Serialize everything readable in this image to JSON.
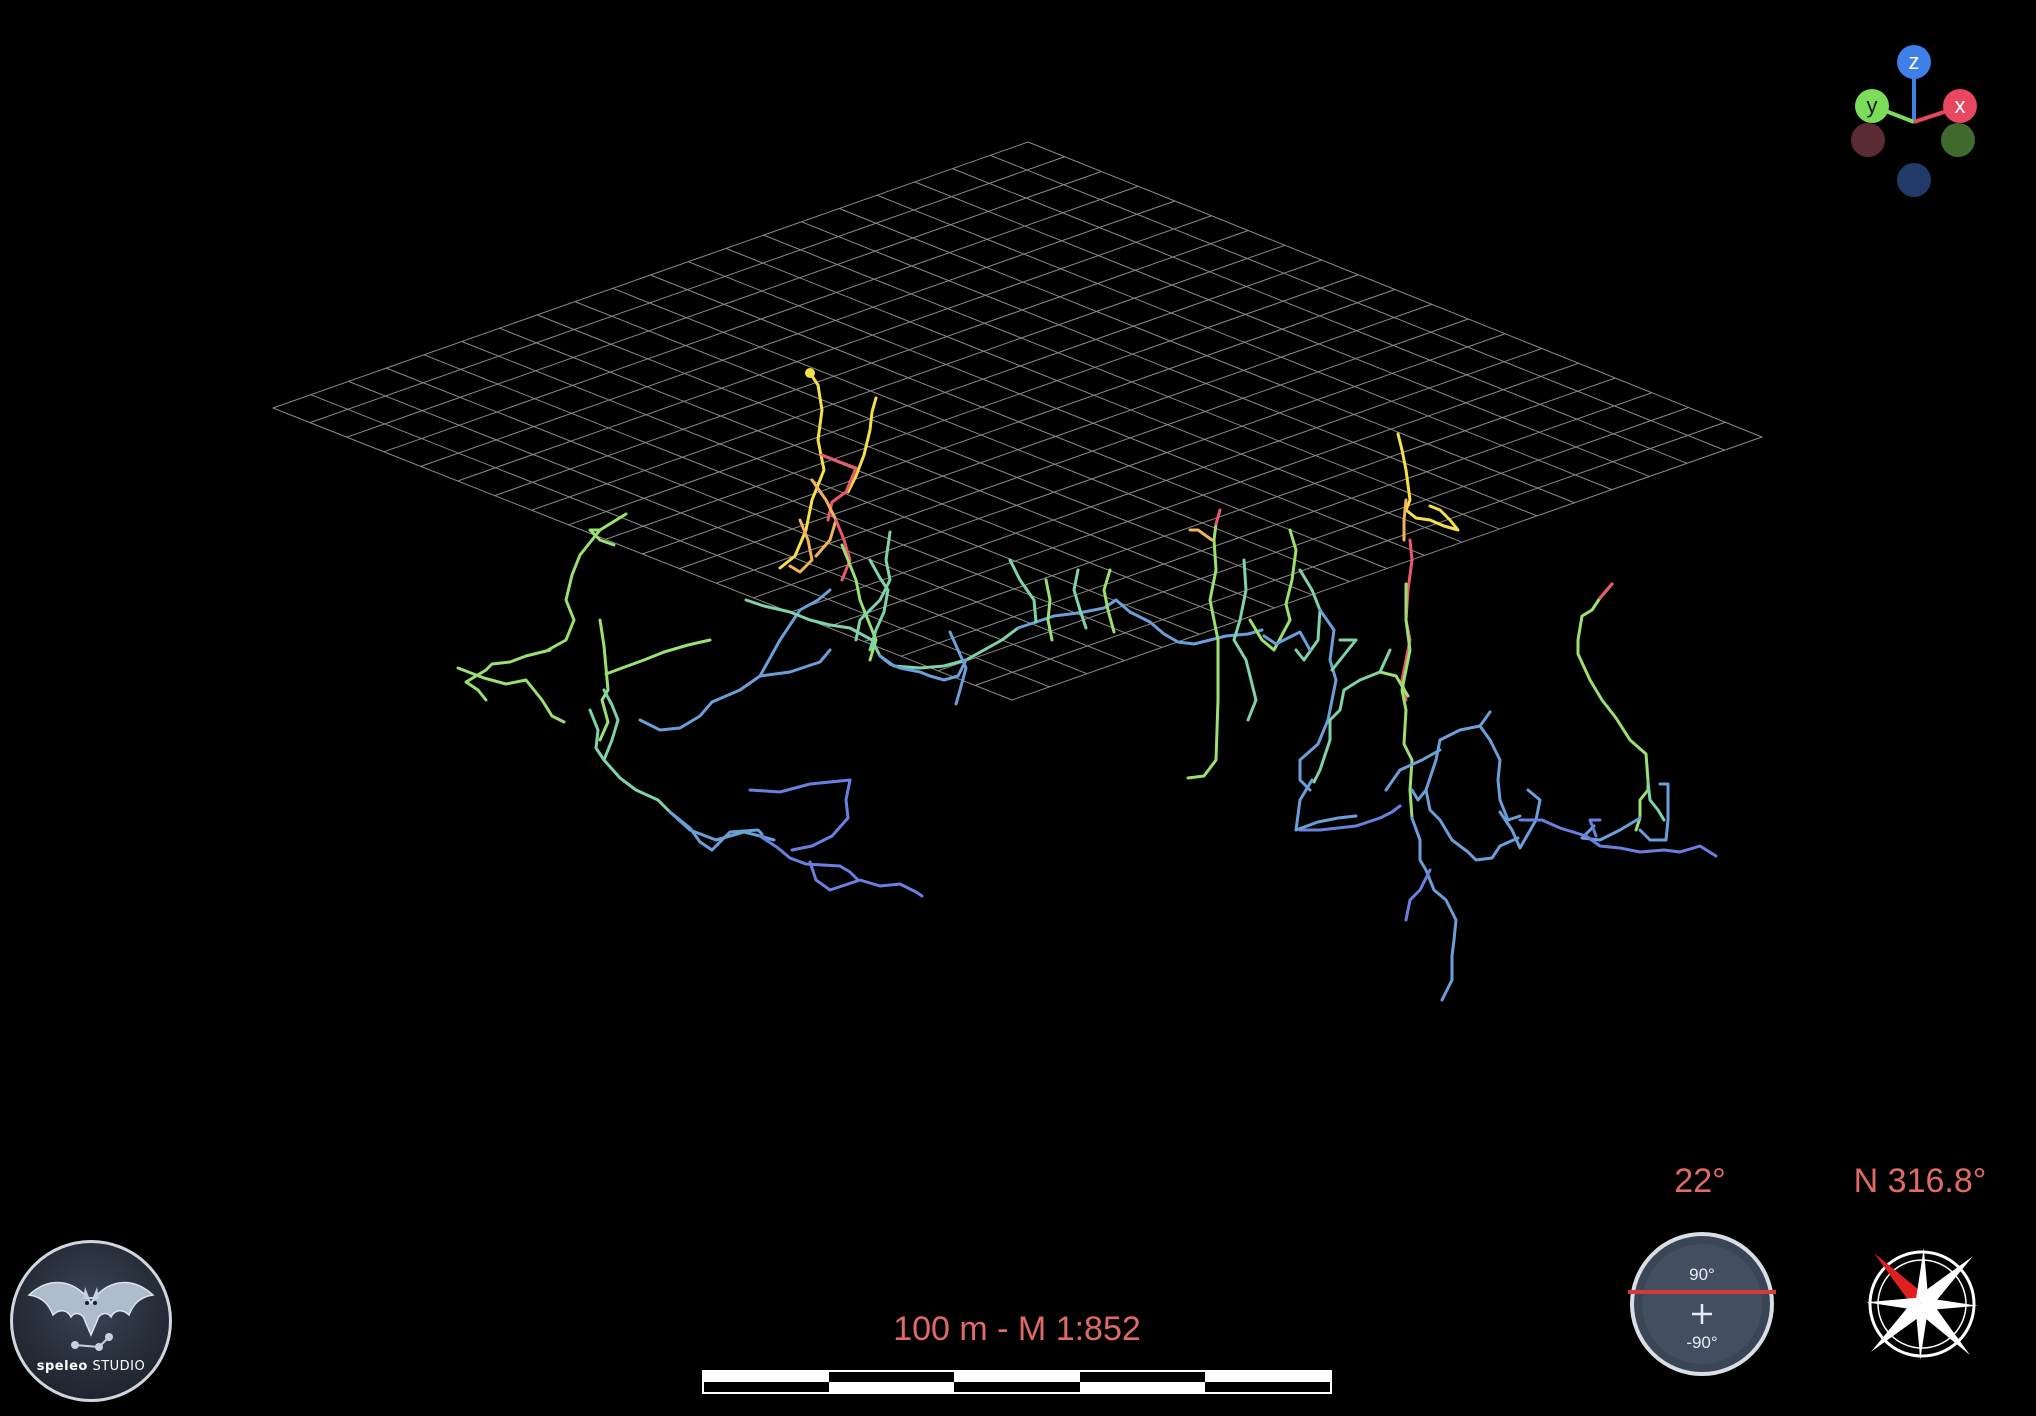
{
  "viewer": {
    "background": "#000000",
    "grid_color": "#8a8a8a",
    "label_color": "#e06a66"
  },
  "axes_gizmo": {
    "x_label": "x",
    "y_label": "y",
    "z_label": "z",
    "x_color": "#e8475f",
    "y_color": "#7bdc5a",
    "z_color": "#3f7fe8"
  },
  "logo": {
    "text_bold": "speleo",
    "text_regular": " STUDIO"
  },
  "scale": {
    "label": "100 m - M 1:852"
  },
  "tilt": {
    "label": "22°",
    "top_mark": "90°",
    "bottom_mark": "-90°"
  },
  "heading": {
    "label": "N 316.8°"
  },
  "elevation_colors": [
    "#f6e04a",
    "#f2b35c",
    "#e85a6a",
    "#9be070",
    "#7fd3a8",
    "#6a9fd8",
    "#6a80e0"
  ]
}
